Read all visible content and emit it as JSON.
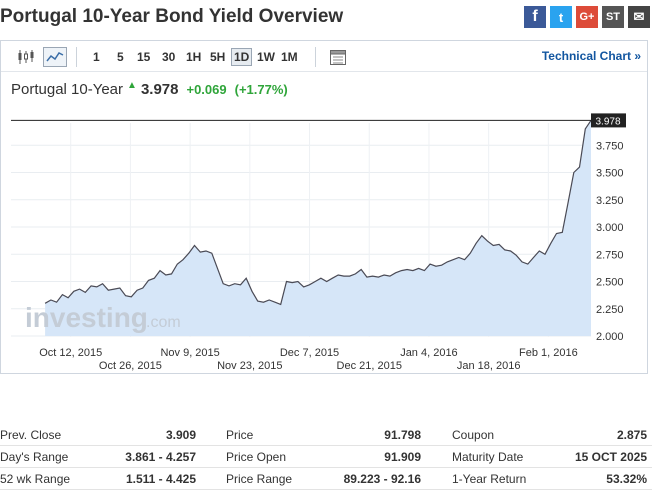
{
  "header": {
    "title": "Portugal 10-Year Bond Yield Overview"
  },
  "share": {
    "facebook": "f",
    "twitter": "t",
    "google": "G+",
    "stumble": "ST",
    "mail": "✉"
  },
  "toolbar": {
    "timeframes": [
      {
        "label": "1",
        "active": false
      },
      {
        "label": "5",
        "active": false
      },
      {
        "label": "15",
        "active": false
      },
      {
        "label": "30",
        "active": false
      },
      {
        "label": "1H",
        "active": false
      },
      {
        "label": "5H",
        "active": false
      },
      {
        "label": "1D",
        "active": true
      },
      {
        "label": "1W",
        "active": false
      },
      {
        "label": "1M",
        "active": false
      }
    ],
    "technical_chart": "Technical Chart »"
  },
  "quote": {
    "name": "Portugal 10-Year",
    "last": "3.978",
    "arrow": "▲",
    "change": "+0.069",
    "change_pct": "(+1.77%)"
  },
  "colors": {
    "accent": "#1256a0",
    "positive": "#2fa53a",
    "area_fill": "#d6e6f8",
    "line": "#4a4a55"
  },
  "watermark": {
    "brand": "investing",
    "suffix": ".com"
  },
  "chart_data": {
    "type": "area",
    "title": "",
    "xlabel": "",
    "ylabel": "",
    "ylim": [
      2.0,
      4.0
    ],
    "yticks": [
      "2.000",
      "2.250",
      "2.500",
      "2.750",
      "3.000",
      "3.250",
      "3.500",
      "3.750"
    ],
    "last_label": "3.978",
    "xticks": [
      {
        "label": "Oct 12, 2015",
        "day": 8
      },
      {
        "label": "Oct 26, 2015",
        "day": 22
      },
      {
        "label": "Nov 9, 2015",
        "day": 36
      },
      {
        "label": "Nov 23, 2015",
        "day": 50
      },
      {
        "label": "Dec 7, 2015",
        "day": 64
      },
      {
        "label": "Dec 21, 2015",
        "day": 78
      },
      {
        "label": "Jan 4, 2016",
        "day": 92
      },
      {
        "label": "Jan 18, 2016",
        "day": 106
      },
      {
        "label": "Feb 1, 2016",
        "day": 120
      }
    ],
    "series": [
      {
        "values": [
          2.3,
          2.33,
          2.31,
          2.38,
          2.35,
          2.41,
          2.43,
          2.4,
          2.46,
          2.45,
          2.48,
          2.42,
          2.43,
          2.44,
          2.37,
          2.36,
          2.42,
          2.44,
          2.51,
          2.53,
          2.6,
          2.56,
          2.57,
          2.66,
          2.7,
          2.76,
          2.83,
          2.77,
          2.78,
          2.76,
          2.62,
          2.48,
          2.46,
          2.48,
          2.47,
          2.53,
          2.41,
          2.32,
          2.31,
          2.33,
          2.31,
          2.29,
          2.5,
          2.49,
          2.5,
          2.45,
          2.47,
          2.5,
          2.53,
          2.5,
          2.53,
          2.56,
          2.55,
          2.55,
          2.57,
          2.61,
          2.54,
          2.55,
          2.54,
          2.56,
          2.55,
          2.58,
          2.6,
          2.61,
          2.6,
          2.62,
          2.6,
          2.66,
          2.64,
          2.65,
          2.68,
          2.7,
          2.72,
          2.7,
          2.76,
          2.85,
          2.92,
          2.87,
          2.83,
          2.84,
          2.79,
          2.78,
          2.74,
          2.68,
          2.66,
          2.72,
          2.78,
          2.75,
          2.85,
          2.94,
          2.95,
          3.22,
          3.5,
          3.55,
          3.9,
          3.978
        ]
      }
    ],
    "x_range_days": [
      -6,
      130
    ],
    "last_day": 130
  },
  "stats": {
    "rows": [
      [
        {
          "label": "Prev. Close",
          "value": "3.909"
        },
        {
          "label": "Price",
          "value": "91.798"
        },
        {
          "label": "Coupon",
          "value": "2.875"
        }
      ],
      [
        {
          "label": "Day's Range",
          "value": "3.861 - 4.257"
        },
        {
          "label": "Price Open",
          "value": "91.909"
        },
        {
          "label": "Maturity Date",
          "value": "15 OCT 2025"
        }
      ],
      [
        {
          "label": "52 wk Range",
          "value": "1.511 - 4.425"
        },
        {
          "label": "Price Range",
          "value": "89.223 - 92.16"
        },
        {
          "label": "1-Year Return",
          "value": "53.32%"
        }
      ]
    ]
  }
}
